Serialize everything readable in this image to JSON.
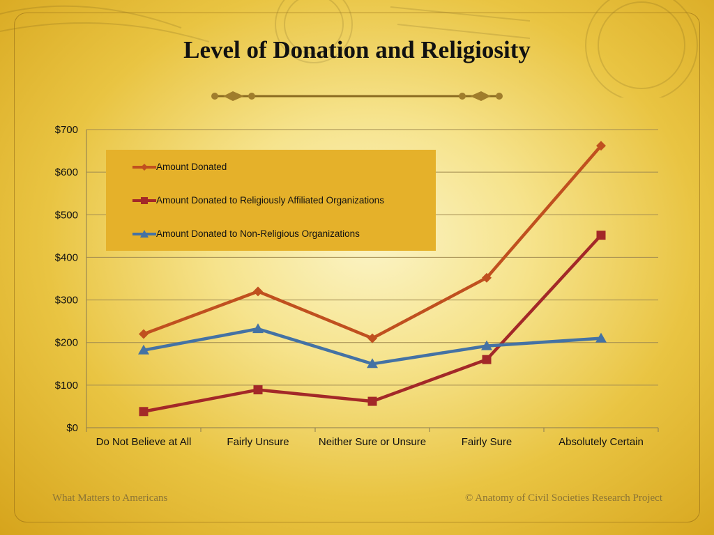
{
  "slide": {
    "title": "Level of Donation and Religiosity",
    "footer_left": "What Matters to Americans",
    "footer_right": "© Anatomy of Civil Societies Research Project"
  },
  "colors": {
    "amount_donated": "#c0501f",
    "religious": "#a32828",
    "non_religious": "#4472a4",
    "legend_bg": "#e5b12a",
    "gridline": "#a08a50"
  },
  "chart_data": {
    "type": "line",
    "title": "",
    "xlabel": "",
    "ylabel": "",
    "categories": [
      "Do Not Believe at All",
      "Fairly Unsure",
      "Neither Sure or Unsure",
      "Fairly Sure",
      "Absolutely Certain"
    ],
    "ylim": [
      0,
      700
    ],
    "yticks": [
      0,
      100,
      200,
      300,
      400,
      500,
      600,
      700
    ],
    "ytick_labels": [
      "$0",
      "$100",
      "$200",
      "$300",
      "$400",
      "$500",
      "$600",
      "$700"
    ],
    "grid": true,
    "legend_position": "top-left",
    "series": [
      {
        "name": "Amount Donated",
        "values": [
          220,
          320,
          210,
          352,
          662
        ],
        "color": "#c0501f",
        "marker": "diamond"
      },
      {
        "name": "Amount Donated to Religiously Affiliated Organizations",
        "values": [
          38,
          89,
          62,
          160,
          452
        ],
        "color": "#a32828",
        "marker": "square"
      },
      {
        "name": "Amount Donated to Non-Religious Organizations",
        "values": [
          182,
          232,
          150,
          192,
          210
        ],
        "color": "#4472a4",
        "marker": "triangle"
      }
    ]
  }
}
